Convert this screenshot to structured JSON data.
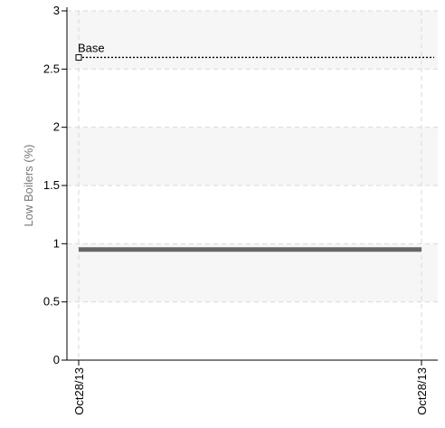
{
  "chart_data": {
    "type": "line",
    "title": "",
    "xlabel": "",
    "ylabel": "Low Boilers (%)",
    "ylim": [
      0,
      3
    ],
    "yticks": [
      "0",
      "0.5",
      "1",
      "1.5",
      "2",
      "2.5",
      "3"
    ],
    "x_tick_labels": [
      "Oct28/13",
      "Oct28/13"
    ],
    "grid": true,
    "series": [
      {
        "x": [
          "Oct28/13",
          "Oct28/13"
        ],
        "values": [
          0.95,
          0.95
        ],
        "color": "#666666"
      }
    ],
    "reference_lines": [
      {
        "label": "Base",
        "value": 2.6,
        "style": "dotted",
        "color": "#000000"
      }
    ]
  }
}
